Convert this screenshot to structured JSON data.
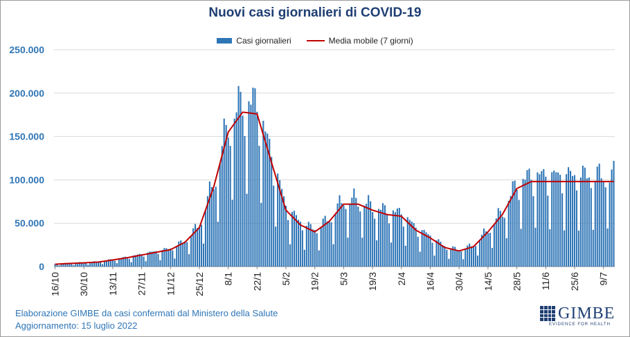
{
  "title": "Nuovi casi giornalieri di COVID-19",
  "legend": {
    "bars": "Casi giornalieri",
    "line": "Media mobile (7 giorni)"
  },
  "footer": {
    "line1": "Elaborazione GIMBE da casi confermati dal Ministero della Salute",
    "line2": "Aggiornamento: 15 luglio 2022"
  },
  "logo": {
    "name": "GIMBE",
    "tagline": "EVIDENCE FOR HEALTH"
  },
  "colors": {
    "bars": "#2e75b6",
    "line": "#c00000",
    "axis_text": "#2e75b6",
    "title": "#1f3f73"
  },
  "chart_data": {
    "type": "bar",
    "start_date": "2021-10-16",
    "end_date": "2022-07-14",
    "y_range": [
      0,
      250000
    ],
    "y_ticks": [
      "0",
      "50.000",
      "100.000",
      "150.000",
      "200.000",
      "250.000"
    ],
    "x_tick_labels": [
      "16/10",
      "30/10",
      "13/11",
      "27/11",
      "11/12",
      "25/12",
      "8/1",
      "22/1",
      "5/2",
      "19/2",
      "5/3",
      "19/3",
      "2/4",
      "16/4",
      "30/4",
      "14/5",
      "28/5",
      "11/6",
      "25/6",
      "9/7"
    ],
    "grid": true,
    "series": [
      {
        "name": "Casi giornalieri",
        "kind": "bar",
        "weekly_avg": [
          2700,
          3600,
          4300,
          5200,
          7600,
          10200,
          13300,
          16400,
          19500,
          28000,
          45000,
          92000,
          155000,
          178000,
          176000,
          120000,
          65000,
          48000,
          40000,
          52000,
          72000,
          72000,
          65000,
          60000,
          58000,
          42000,
          33000,
          22000,
          18000,
          23000,
          40000,
          60000,
          90000,
          98000
        ]
      },
      {
        "name": "Media mobile (7 giorni)",
        "kind": "line",
        "weekly_avg": [
          2700,
          3600,
          4300,
          5200,
          7600,
          10200,
          13300,
          16400,
          19500,
          28000,
          45000,
          92000,
          155000,
          178000,
          176000,
          120000,
          65000,
          48000,
          40000,
          52000,
          72000,
          72000,
          65000,
          60000,
          58000,
          42000,
          33000,
          22000,
          18000,
          23000,
          40000,
          60000,
          90000,
          98000
        ]
      }
    ]
  }
}
